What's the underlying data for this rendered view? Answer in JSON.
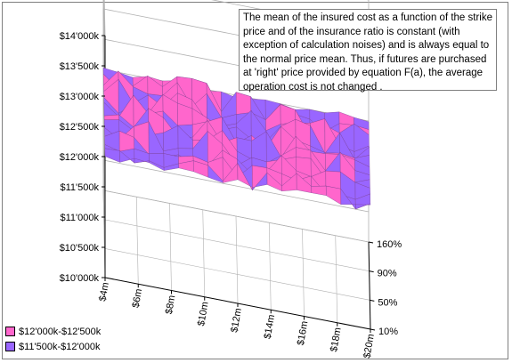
{
  "chart_data": {
    "type": "surface3d",
    "title": "",
    "z_axis": {
      "ticks": [
        "$10'000k",
        "$10'500k",
        "$11'000k",
        "$11'500k",
        "$12'000k",
        "$12'500k",
        "$13'000k",
        "$13'500k",
        "$14'000k"
      ],
      "range": [
        10000,
        14000
      ],
      "unit": "$k"
    },
    "x_axis": {
      "ticks": [
        "$4m",
        "$6m",
        "$8m",
        "$10m",
        "$12m",
        "$14m",
        "$16m",
        "$18m",
        "$20m"
      ],
      "range": [
        4,
        20
      ],
      "unit": "$m"
    },
    "y_axis": {
      "ticks": [
        "10%",
        "50%",
        "90%",
        "160%"
      ]
    },
    "surface_level": 12000,
    "surface_variation": [
      11800,
      12400
    ],
    "bands": [
      {
        "name": "$12'000k-$12'500k",
        "color": "#ff66cc"
      },
      {
        "name": "$11'500k-$12'000k",
        "color": "#9966ff"
      }
    ],
    "grid": true,
    "legend_position": "bottom-left",
    "annotation": "The mean of the insured cost as a function of the strike price and of the insurance ratio is constant (with exception of calculation noises) and is always equal to the normal price mean. Thus, if futures are purchased at 'right' price provided by equation F(a), the average operation cost is not changed ."
  }
}
